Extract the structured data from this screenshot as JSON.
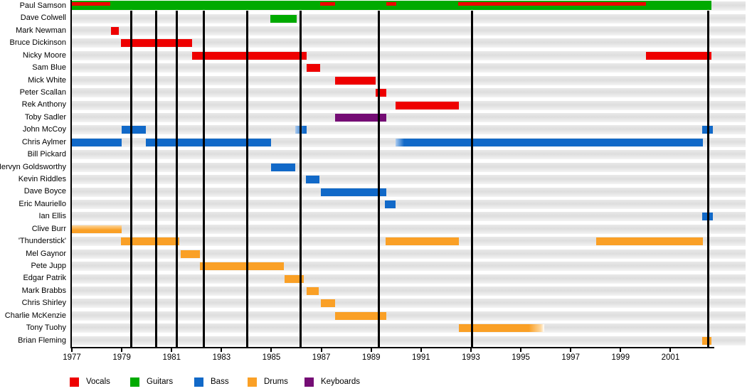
{
  "chart_data": {
    "type": "bar",
    "variant": "gantt-membership-timeline",
    "x_axis": {
      "start_year": 1977,
      "end_year": 2002.7,
      "tick_years": [
        1977,
        1979,
        1981,
        1983,
        1985,
        1987,
        1989,
        1991,
        1993,
        1995,
        1997,
        1999,
        2001
      ],
      "tick_labels": [
        "1977",
        "1979",
        "1981",
        "1983",
        "1985",
        "1987",
        "1989",
        "1991",
        "1993",
        "1995",
        "1997",
        "1999",
        "2001"
      ]
    },
    "event_lines": {
      "description": "vertical black marker lines",
      "years": [
        1979.37,
        1980.39,
        1981.22,
        1982.3,
        1984.02,
        1986.18,
        1989.32,
        1993.03,
        2002.5
      ]
    },
    "legend": [
      {
        "label": "Vocals",
        "role": "vocals",
        "color": "#ee0000"
      },
      {
        "label": "Guitars",
        "role": "guitars",
        "color": "#00aa00"
      },
      {
        "label": "Bass",
        "role": "bass",
        "color": "#1169c8"
      },
      {
        "label": "Drums",
        "role": "drums",
        "color": "#faa026"
      },
      {
        "label": "Keyboards",
        "role": "keyboards",
        "color": "#750d75"
      }
    ],
    "colors": {
      "vocals": "#ee0000",
      "guitars": "#00aa00",
      "bass": "#1169c8",
      "drums": "#faa026",
      "keyboards": "#750d75",
      "bass_light": "#aecdf0",
      "drums_light": "#fdd79e",
      "row_band": "#e5e5e5",
      "line": "#000000",
      "background": "#ffffff"
    },
    "members": [
      {
        "name": "Paul Samson",
        "bars": [
          {
            "role": "guitars",
            "from": 1977.0,
            "till": 2002.64
          },
          {
            "role": "vocals",
            "from": 1977.0,
            "till": 1978.54,
            "overlay": true
          },
          {
            "role": "vocals",
            "from": 1986.95,
            "till": 1987.55,
            "overlay": true
          },
          {
            "role": "vocals",
            "from": 1989.6,
            "till": 1990.0,
            "overlay": true
          },
          {
            "role": "vocals",
            "from": 1992.5,
            "till": 2000.02,
            "overlay": true
          }
        ]
      },
      {
        "name": "Dave Colwell",
        "bars": [
          {
            "role": "guitars",
            "from": 1984.96,
            "till": 1986.01
          }
        ]
      },
      {
        "name": "Mark Newman",
        "bars": [
          {
            "role": "vocals",
            "from": 1978.57,
            "till": 1978.88
          }
        ]
      },
      {
        "name": "Bruce Dickinson",
        "bars": [
          {
            "role": "vocals",
            "from": 1978.97,
            "till": 1981.82
          }
        ]
      },
      {
        "name": "Nicky Moore",
        "bars": [
          {
            "role": "vocals",
            "from": 1981.82,
            "till": 1986.41
          },
          {
            "role": "vocals",
            "from": 2000.02,
            "till": 2002.64
          }
        ]
      },
      {
        "name": "Sam Blue",
        "bars": [
          {
            "role": "vocals",
            "from": 1986.41,
            "till": 1986.95
          }
        ]
      },
      {
        "name": "Mick White",
        "bars": [
          {
            "role": "vocals",
            "from": 1987.55,
            "till": 1989.18
          }
        ]
      },
      {
        "name": "Peter Scallan",
        "bars": [
          {
            "role": "vocals",
            "from": 1989.18,
            "till": 1989.6
          }
        ]
      },
      {
        "name": "Rek Anthony",
        "bars": [
          {
            "role": "vocals",
            "from": 1989.98,
            "till": 1992.52
          }
        ]
      },
      {
        "name": "Toby Sadler",
        "bars": [
          {
            "role": "keyboards",
            "from": 1987.55,
            "till": 1989.6
          }
        ]
      },
      {
        "name": "John McCoy",
        "bars": [
          {
            "role": "bass",
            "from": 1979.0,
            "till": 1979.97
          },
          {
            "role": "bass",
            "from": 1985.96,
            "till": 1986.41,
            "fade": "left"
          },
          {
            "role": "bass",
            "from": 2002.27,
            "till": 2002.7
          }
        ]
      },
      {
        "name": "Chris Aylmer",
        "bars": [
          {
            "role": "bass",
            "from": 1977.0,
            "till": 1979.0
          },
          {
            "role": "bass",
            "from": 1979.97,
            "till": 1984.99
          },
          {
            "role": "bass",
            "from": 1989.98,
            "till": 2002.3,
            "fade": "left"
          }
        ]
      },
      {
        "name": "Bill Pickard",
        "bars": []
      },
      {
        "name": "Mervyn Goldsworthy",
        "bars": [
          {
            "role": "bass",
            "from": 1984.99,
            "till": 1985.96
          }
        ]
      },
      {
        "name": "Kevin Riddles",
        "bars": [
          {
            "role": "bass",
            "from": 1986.38,
            "till": 1986.92
          }
        ]
      },
      {
        "name": "Dave Boyce",
        "bars": [
          {
            "role": "bass",
            "from": 1986.98,
            "till": 1989.6
          }
        ]
      },
      {
        "name": "Eric Mauriello",
        "bars": [
          {
            "role": "bass",
            "from": 1989.55,
            "till": 1989.98
          }
        ]
      },
      {
        "name": "Ian Ellis",
        "bars": [
          {
            "role": "bass",
            "from": 2002.27,
            "till": 2002.7
          }
        ]
      },
      {
        "name": "Clive Burr",
        "bars": [
          {
            "role": "drums",
            "from": 1977.0,
            "till": 1979.0,
            "fade": "top"
          }
        ]
      },
      {
        "name": "'Thunderstick'",
        "bars": [
          {
            "role": "drums",
            "from": 1978.97,
            "till": 1981.31
          },
          {
            "role": "drums",
            "from": 1989.58,
            "till": 1992.52
          },
          {
            "role": "drums",
            "from": 1998.02,
            "till": 2002.3
          }
        ]
      },
      {
        "name": "Mel Gaynor",
        "bars": [
          {
            "role": "drums",
            "from": 1981.36,
            "till": 1982.13
          }
        ]
      },
      {
        "name": "Pete Jupp",
        "bars": [
          {
            "role": "drums",
            "from": 1982.13,
            "till": 1985.5
          }
        ]
      },
      {
        "name": "Edgar Patrik",
        "bars": [
          {
            "role": "drums",
            "from": 1985.53,
            "till": 1986.3
          }
        ]
      },
      {
        "name": "Mark Brabbs",
        "bars": [
          {
            "role": "drums",
            "from": 1986.41,
            "till": 1986.9
          }
        ]
      },
      {
        "name": "Chris Shirley",
        "bars": [
          {
            "role": "drums",
            "from": 1986.98,
            "till": 1987.55
          }
        ]
      },
      {
        "name": "Charlie McKenzie",
        "bars": [
          {
            "role": "drums",
            "from": 1987.55,
            "till": 1989.6
          }
        ]
      },
      {
        "name": "Tony Tuohy",
        "bars": [
          {
            "role": "drums",
            "from": 1992.52,
            "till": 1995.94,
            "fade": "right"
          }
        ]
      },
      {
        "name": "Brian Fleming",
        "bars": [
          {
            "role": "drums",
            "from": 2002.27,
            "till": 2002.64
          }
        ]
      }
    ]
  }
}
